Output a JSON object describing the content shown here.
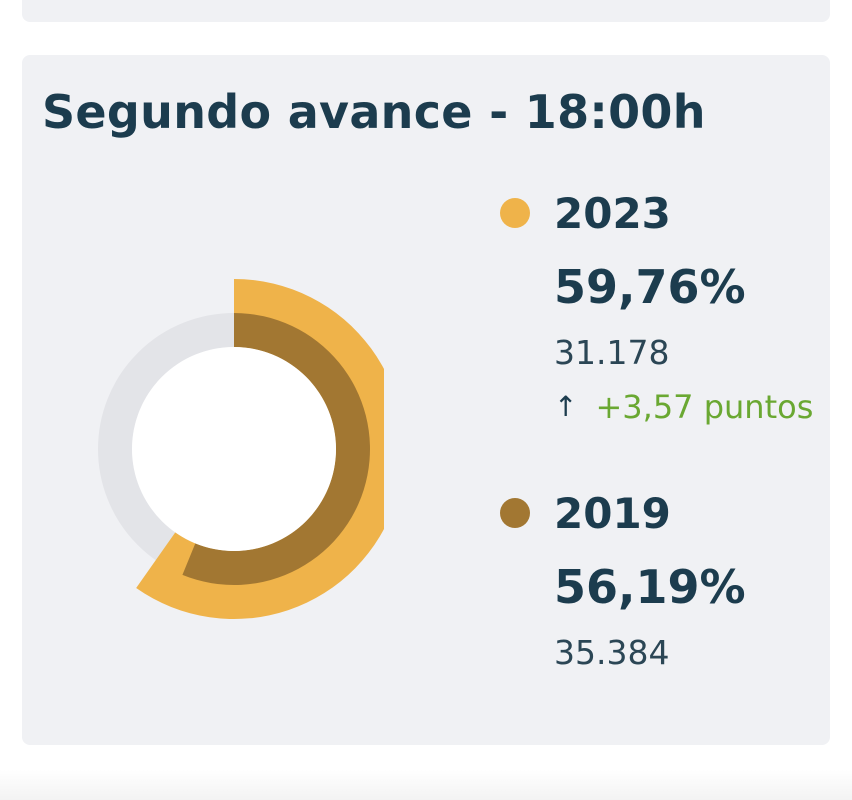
{
  "card": {
    "title": "Segundo avance - 18:00h"
  },
  "chart_data": {
    "type": "pie",
    "title": "Segundo avance - 18:00h",
    "series": [
      {
        "name": "2023",
        "value": 59.76,
        "value_label": "59,76%",
        "count": "31.178",
        "change": "+3,57 puntos",
        "color": "#efb34a"
      },
      {
        "name": "2019",
        "value": 56.19,
        "value_label": "56,19%",
        "count": "35.384",
        "color": "#a27732"
      }
    ],
    "track_color": "#e3e4e8"
  },
  "icons": {
    "change_arrow": "arrow-up-icon"
  }
}
